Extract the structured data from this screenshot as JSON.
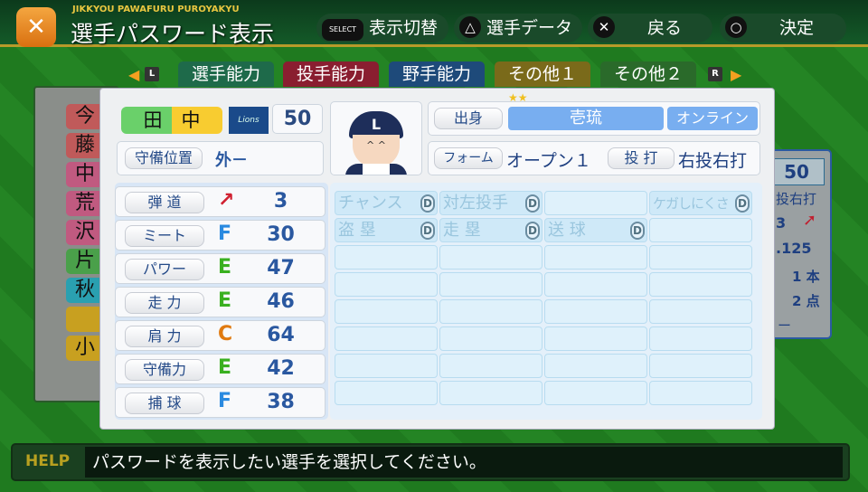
{
  "header": {
    "subtitle": "JIKKYOU PAWAFURU PUROYAKYU",
    "title": "選手パスワード表示",
    "buttons": [
      {
        "symbol": "SELECT",
        "label": "表示切替"
      },
      {
        "symbol": "△",
        "label": "選手データ"
      },
      {
        "symbol": "✕",
        "label": "戻る"
      },
      {
        "symbol": "○",
        "label": "決定"
      }
    ]
  },
  "tabs": {
    "left_key": "L",
    "right_key": "R",
    "items": [
      {
        "label": "選手能力",
        "color": "#1e6a4a",
        "active": true
      },
      {
        "label": "投手能力",
        "color": "#8a1e30"
      },
      {
        "label": "野手能力",
        "color": "#1e4a7a"
      },
      {
        "label": "その他１",
        "color": "#7a6a1a"
      },
      {
        "label": "その他２",
        "color": "#2a6a2a"
      }
    ]
  },
  "player_list": [
    {
      "name": "今",
      "color": "#c05a5a"
    },
    {
      "name": "藤",
      "color": "#c05a5a"
    },
    {
      "name": "中",
      "color": "#c05a80"
    },
    {
      "name": "荒",
      "color": "#c05a80"
    },
    {
      "name": "沢",
      "color": "#c05a80"
    },
    {
      "name": "片",
      "color": "#4aa04a"
    },
    {
      "name": "秋",
      "color": "#2aa0b0"
    },
    {
      "name": "",
      "color": "#c8a020"
    },
    {
      "name": "小",
      "color": "#c8a020"
    }
  ],
  "behind_card": {
    "level": "50",
    "bat_throw": "投右打",
    "trajectory": "3",
    "average": ".125",
    "homeruns": "1 本",
    "rbi": "2 点",
    "extra": "ー"
  },
  "player": {
    "name": "田　中",
    "team_logo": "Lions",
    "level": "50",
    "position_label": "守備位置",
    "position": "外－",
    "origin_label": "出身",
    "origin": "壱琉",
    "online": "オンライン",
    "stars": "★★",
    "form_label": "フォーム",
    "form": "オープン１",
    "throw_bat_label": "投 打",
    "throw_bat": "右投右打"
  },
  "stats": [
    {
      "label": "弾 道",
      "grade": "↗",
      "value": "3",
      "color": "#d02030"
    },
    {
      "label": "ミート",
      "grade": "F",
      "value": "30",
      "color": "#2a8ae0"
    },
    {
      "label": "パワー",
      "grade": "E",
      "value": "47",
      "color": "#3ab020"
    },
    {
      "label": "走 力",
      "grade": "E",
      "value": "46",
      "color": "#3ab020"
    },
    {
      "label": "肩 力",
      "grade": "C",
      "value": "64",
      "color": "#e07a10"
    },
    {
      "label": "守備力",
      "grade": "E",
      "value": "42",
      "color": "#3ab020"
    },
    {
      "label": "捕 球",
      "grade": "F",
      "value": "38",
      "color": "#2a8ae0"
    }
  ],
  "abilities": [
    [
      {
        "label": "チャンス",
        "grade": "D"
      },
      {
        "label": "対左投手",
        "grade": "D"
      },
      {
        "label": "",
        "grade": ""
      },
      {
        "label": "ケガしにくさ",
        "grade": "D"
      }
    ],
    [
      {
        "label": "盗 塁",
        "grade": "D"
      },
      {
        "label": "走 塁",
        "grade": "D"
      },
      {
        "label": "送 球",
        "grade": "D"
      },
      {
        "label": "",
        "grade": ""
      }
    ]
  ],
  "help": {
    "label": "HELP",
    "text": "パスワードを表示したい選手を選択してください。"
  }
}
